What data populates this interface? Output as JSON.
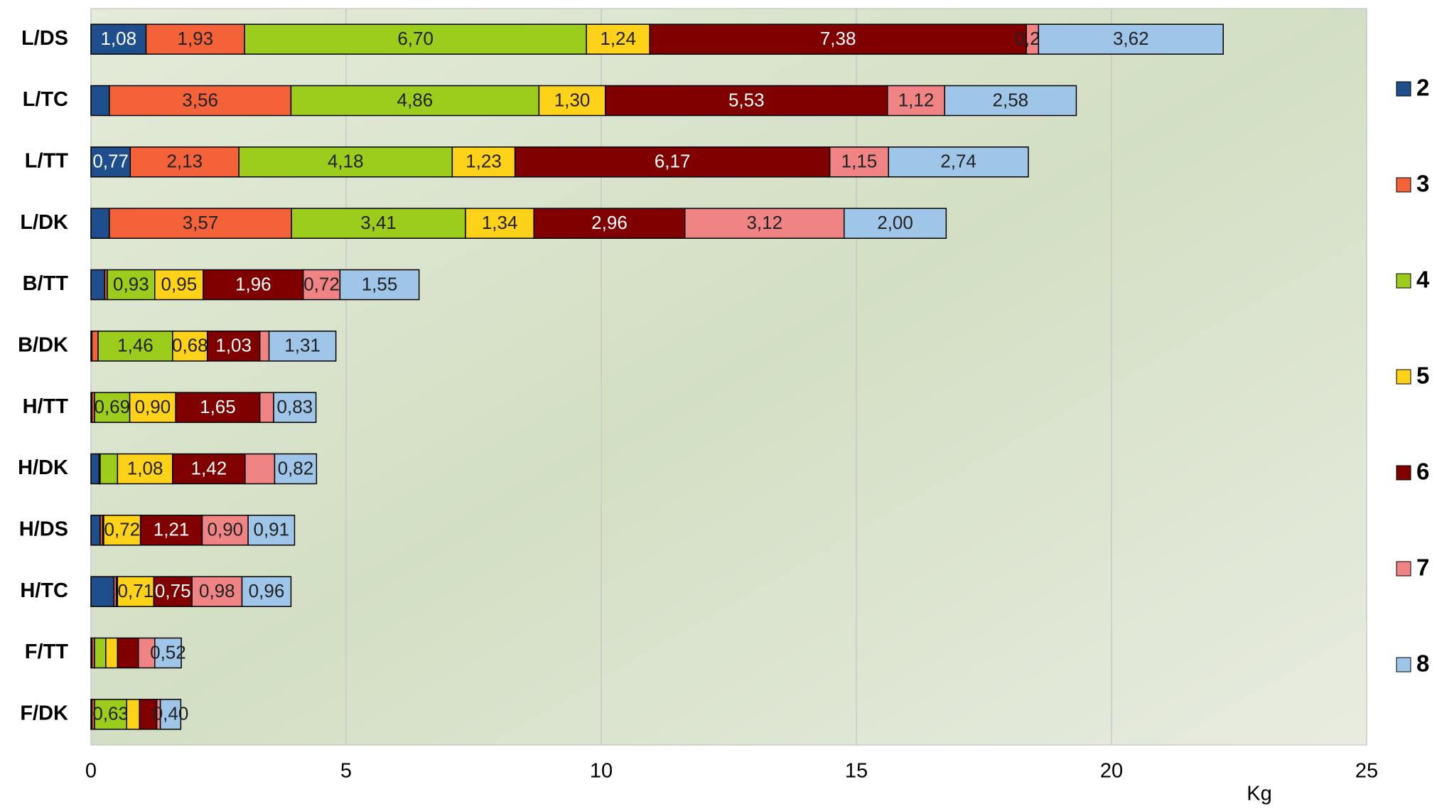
{
  "chart_data": {
    "type": "stacked-barh",
    "categories": [
      "L/DS",
      "L/TC",
      "L/TT",
      "L/DK",
      "B/TT",
      "B/DK",
      "H/TT",
      "H/DK",
      "H/DS",
      "H/TC",
      "F/TT",
      "F/DK"
    ],
    "series": [
      {
        "name": "2",
        "color": "#1f4e8c",
        "values": [
          1.08,
          0.36,
          0.77,
          0.36,
          0.27,
          0.02,
          0.02,
          0.16,
          0.18,
          0.45,
          0.02,
          0.02
        ],
        "value_labels": [
          "1,08",
          null,
          "0,77",
          null,
          null,
          null,
          null,
          null,
          null,
          null,
          null,
          null
        ]
      },
      {
        "name": "3",
        "color": "#f4623a",
        "values": [
          1.93,
          3.56,
          2.13,
          3.57,
          0.05,
          0.12,
          0.05,
          0.02,
          0.05,
          0.05,
          0.05,
          0.05
        ],
        "value_labels": [
          "1,93",
          "3,56",
          "2,13",
          "3,57",
          null,
          null,
          null,
          null,
          null,
          null,
          null,
          null
        ]
      },
      {
        "name": "4",
        "color": "#9ccc1c",
        "values": [
          6.7,
          4.86,
          4.18,
          3.41,
          0.93,
          1.46,
          0.69,
          0.34,
          0.02,
          0.02,
          0.22,
          0.63
        ],
        "value_labels": [
          "6,70",
          "4,86",
          "4,18",
          "3,41",
          "0,93",
          "1,46",
          "0,69",
          null,
          null,
          null,
          null,
          "0,63"
        ]
      },
      {
        "name": "5",
        "color": "#ffd21a",
        "values": [
          1.24,
          1.3,
          1.23,
          1.34,
          0.95,
          0.68,
          0.9,
          1.08,
          0.72,
          0.71,
          0.23,
          0.25
        ],
        "value_labels": [
          "1,24",
          "1,30",
          "1,23",
          "1,34",
          "0,95",
          "0,68",
          "0,90",
          "1,08",
          "0,72",
          "0,71",
          null,
          null
        ]
      },
      {
        "name": "6",
        "color": "#800000",
        "values": [
          7.38,
          5.53,
          6.17,
          2.96,
          1.96,
          1.03,
          1.65,
          1.42,
          1.21,
          0.75,
          0.41,
          0.34
        ],
        "value_labels": [
          "7,38",
          "5,53",
          "6,17",
          "2,96",
          "1,96",
          "1,03",
          "1,65",
          "1,42",
          "1,21",
          "0,75",
          null,
          null
        ]
      },
      {
        "name": "7",
        "color": "#f08484",
        "values": [
          0.24,
          1.12,
          1.15,
          3.12,
          0.72,
          0.18,
          0.27,
          0.58,
          0.9,
          0.98,
          0.32,
          0.07
        ],
        "value_labels": [
          "0,24",
          "1,12",
          "1,15",
          "3,12",
          "0,72",
          null,
          null,
          null,
          "0,90",
          "0,98",
          null,
          null
        ]
      },
      {
        "name": "8",
        "color": "#9fc5e8",
        "values": [
          3.62,
          2.58,
          2.74,
          2.0,
          1.55,
          1.31,
          0.83,
          0.82,
          0.91,
          0.96,
          0.52,
          0.4
        ],
        "value_labels": [
          "3,62",
          "2,58",
          "2,74",
          "2,00",
          "1,55",
          "1,31",
          "0,83",
          "0,82",
          "0,91",
          "0,96",
          "0,52",
          "0,40"
        ]
      }
    ],
    "x_label": "Kg",
    "xlim": [
      0,
      25
    ],
    "xticks": [
      0,
      5,
      10,
      15,
      20,
      25
    ],
    "grid": true,
    "legend": "right"
  }
}
